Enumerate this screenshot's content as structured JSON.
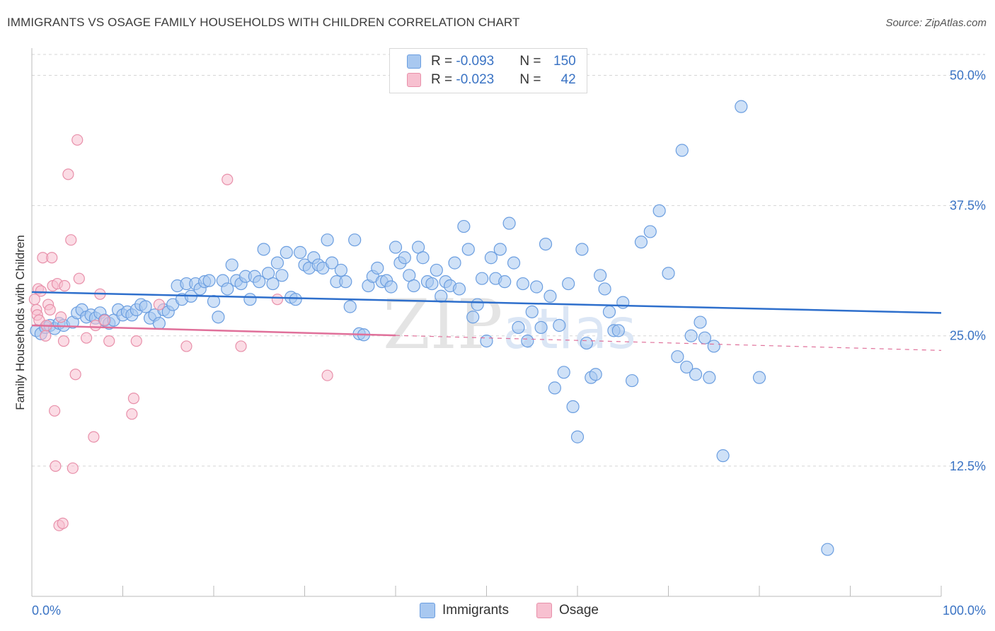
{
  "title": "IMMIGRANTS VS OSAGE FAMILY HOUSEHOLDS WITH CHILDREN CORRELATION CHART",
  "source": "Source: ZipAtlas.com",
  "watermark": "ZIPatlas",
  "legend": {
    "rows": [
      {
        "r_label": "R = ",
        "r_value": "-0.093",
        "n_label": "N = ",
        "n_value": "150",
        "color": "#a8c8f0",
        "border": "#6b9ee0"
      },
      {
        "r_label": "R = ",
        "r_value": "-0.023",
        "n_label": "N = ",
        "n_value": "42",
        "color": "#f7c0d0",
        "border": "#e890aa"
      }
    ]
  },
  "bottom_legend": [
    {
      "label": "Immigrants",
      "color": "#a8c8f0",
      "border": "#6b9ee0"
    },
    {
      "label": "Osage",
      "color": "#f7c0d0",
      "border": "#e890aa"
    }
  ],
  "chart_data": {
    "type": "scatter",
    "ylabel": "Family Households with Children",
    "xlim": [
      0,
      100
    ],
    "ylim": [
      0,
      52
    ],
    "x_tick_labels": [
      "0.0%",
      "100.0%"
    ],
    "y_ticks": [
      12.5,
      25.0,
      37.5,
      50.0
    ],
    "y_tick_labels": [
      "12.5%",
      "25.0%",
      "37.5%",
      "50.0%"
    ],
    "grid": true,
    "colors": {
      "immigrants": "#6b9ee0",
      "immigrants_fill": "#a8c8f0",
      "osage": "#e890aa",
      "osage_fill": "#f7c0d0",
      "trend_blue": "#2e6fcc",
      "trend_pink": "#e0709a",
      "axis_label": "#3a73c4"
    },
    "series": [
      {
        "name": "Immigrants",
        "trend": {
          "x": [
            0,
            100
          ],
          "y": [
            29.2,
            27.2
          ]
        },
        "points": [
          [
            0.5,
            25.5
          ],
          [
            1,
            25.2
          ],
          [
            1.5,
            25.8
          ],
          [
            2,
            26
          ],
          [
            2.5,
            25.7
          ],
          [
            3,
            26.2
          ],
          [
            3.5,
            26
          ],
          [
            4.5,
            26.3
          ],
          [
            5,
            27.2
          ],
          [
            5.5,
            27.5
          ],
          [
            6,
            26.8
          ],
          [
            6.5,
            27
          ],
          [
            7,
            26.7
          ],
          [
            7.5,
            27.2
          ],
          [
            8,
            26.5
          ],
          [
            8.5,
            26.2
          ],
          [
            9,
            26.5
          ],
          [
            9.5,
            27.5
          ],
          [
            10,
            27
          ],
          [
            10.5,
            27.3
          ],
          [
            11,
            27
          ],
          [
            11.5,
            27.5
          ],
          [
            12,
            28
          ],
          [
            12.5,
            27.8
          ],
          [
            13,
            26.7
          ],
          [
            13.5,
            27
          ],
          [
            14,
            26.2
          ],
          [
            14.5,
            27.5
          ],
          [
            15,
            27.3
          ],
          [
            15.5,
            28
          ],
          [
            16,
            29.8
          ],
          [
            16.5,
            28.5
          ],
          [
            17,
            30
          ],
          [
            17.5,
            28.8
          ],
          [
            18,
            30
          ],
          [
            18.5,
            29.5
          ],
          [
            19,
            30.2
          ],
          [
            19.5,
            30.3
          ],
          [
            20,
            28.3
          ],
          [
            20.5,
            26.8
          ],
          [
            21,
            30.3
          ],
          [
            21.5,
            29.5
          ],
          [
            22,
            31.8
          ],
          [
            22.5,
            30.3
          ],
          [
            23,
            30
          ],
          [
            23.5,
            30.7
          ],
          [
            24,
            28.5
          ],
          [
            24.5,
            30.7
          ],
          [
            25,
            30.2
          ],
          [
            25.5,
            33.3
          ],
          [
            26,
            31
          ],
          [
            26.5,
            30
          ],
          [
            27,
            32
          ],
          [
            27.5,
            30.8
          ],
          [
            28,
            33
          ],
          [
            28.5,
            28.7
          ],
          [
            29,
            28.5
          ],
          [
            29.5,
            33
          ],
          [
            30,
            31.8
          ],
          [
            30.5,
            31.5
          ],
          [
            31,
            32.5
          ],
          [
            31.5,
            31.8
          ],
          [
            32,
            31.5
          ],
          [
            32.5,
            34.2
          ],
          [
            33,
            32
          ],
          [
            33.5,
            30.2
          ],
          [
            34,
            31.3
          ],
          [
            34.5,
            30.2
          ],
          [
            35,
            27.8
          ],
          [
            35.5,
            34.2
          ],
          [
            36,
            25.2
          ],
          [
            36.5,
            25.1
          ],
          [
            37,
            29.8
          ],
          [
            37.5,
            30.7
          ],
          [
            38,
            31.5
          ],
          [
            38.5,
            30.2
          ],
          [
            39,
            30.3
          ],
          [
            39.5,
            29.7
          ],
          [
            40,
            33.5
          ],
          [
            40.5,
            32
          ],
          [
            41,
            32.5
          ],
          [
            41.5,
            30.8
          ],
          [
            42,
            29.8
          ],
          [
            42.5,
            33.5
          ],
          [
            43,
            32.5
          ],
          [
            43.5,
            30.2
          ],
          [
            44,
            30
          ],
          [
            44.5,
            31.3
          ],
          [
            45,
            28.8
          ],
          [
            45.5,
            30.2
          ],
          [
            46,
            29.8
          ],
          [
            46.5,
            32
          ],
          [
            47,
            29.5
          ],
          [
            47.5,
            35.5
          ],
          [
            48,
            33.3
          ],
          [
            48.5,
            26.8
          ],
          [
            49,
            28
          ],
          [
            49.5,
            30.5
          ],
          [
            50,
            24.5
          ],
          [
            50.5,
            32.5
          ],
          [
            51,
            30.5
          ],
          [
            51.5,
            33.3
          ],
          [
            52,
            30.2
          ],
          [
            52.5,
            35.8
          ],
          [
            53,
            32
          ],
          [
            53.5,
            25.8
          ],
          [
            54,
            30
          ],
          [
            54.5,
            24.5
          ],
          [
            55,
            27.3
          ],
          [
            55.5,
            29.7
          ],
          [
            56,
            25.8
          ],
          [
            56.5,
            33.8
          ],
          [
            57,
            28.8
          ],
          [
            57.5,
            20
          ],
          [
            58,
            26
          ],
          [
            58.5,
            21.5
          ],
          [
            59,
            30
          ],
          [
            59.5,
            18.2
          ],
          [
            60,
            15.3
          ],
          [
            60.5,
            33.3
          ],
          [
            61,
            24.3
          ],
          [
            61.5,
            21
          ],
          [
            62,
            21.3
          ],
          [
            62.5,
            30.8
          ],
          [
            63,
            29.5
          ],
          [
            63.5,
            27.3
          ],
          [
            64,
            25.5
          ],
          [
            64.5,
            25.5
          ],
          [
            65,
            28.2
          ],
          [
            66,
            20.7
          ],
          [
            67,
            34
          ],
          [
            68,
            35
          ],
          [
            69,
            37
          ],
          [
            70,
            31
          ],
          [
            71,
            23
          ],
          [
            71.5,
            42.8
          ],
          [
            72,
            22
          ],
          [
            72.5,
            25
          ],
          [
            73,
            21.3
          ],
          [
            73.5,
            26.3
          ],
          [
            74,
            24.8
          ],
          [
            74.5,
            21
          ],
          [
            75,
            24
          ],
          [
            76,
            13.5
          ],
          [
            78,
            47
          ],
          [
            80,
            21
          ],
          [
            87.5,
            4.5
          ]
        ]
      },
      {
        "name": "Osage",
        "trend": {
          "x": [
            0,
            100
          ],
          "y": [
            26.0,
            23.6
          ]
        },
        "points": [
          [
            0.3,
            28.5
          ],
          [
            0.5,
            27.5
          ],
          [
            0.6,
            27
          ],
          [
            0.7,
            29.5
          ],
          [
            0.8,
            26.5
          ],
          [
            1,
            29.3
          ],
          [
            1.2,
            32.5
          ],
          [
            1.5,
            25
          ],
          [
            1.6,
            26
          ],
          [
            1.8,
            28
          ],
          [
            2,
            27.5
          ],
          [
            2.2,
            32.5
          ],
          [
            2.3,
            29.8
          ],
          [
            2.5,
            17.8
          ],
          [
            2.6,
            12.5
          ],
          [
            2.8,
            30
          ],
          [
            3,
            6.8
          ],
          [
            3.2,
            26.8
          ],
          [
            3.4,
            7
          ],
          [
            3.5,
            24.5
          ],
          [
            3.6,
            29.8
          ],
          [
            4,
            40.5
          ],
          [
            4.3,
            34.2
          ],
          [
            4.5,
            12.3
          ],
          [
            4.8,
            21.3
          ],
          [
            5,
            43.8
          ],
          [
            5.2,
            30.5
          ],
          [
            6,
            24.8
          ],
          [
            6.8,
            15.3
          ],
          [
            7,
            26
          ],
          [
            7.5,
            29
          ],
          [
            8,
            26.5
          ],
          [
            8.5,
            24.5
          ],
          [
            11,
            17.5
          ],
          [
            11.2,
            19
          ],
          [
            11.5,
            24.5
          ],
          [
            14,
            28
          ],
          [
            17,
            24
          ],
          [
            21.5,
            40
          ],
          [
            23,
            24
          ],
          [
            32.5,
            21.2
          ],
          [
            27,
            28.5
          ]
        ]
      }
    ]
  }
}
